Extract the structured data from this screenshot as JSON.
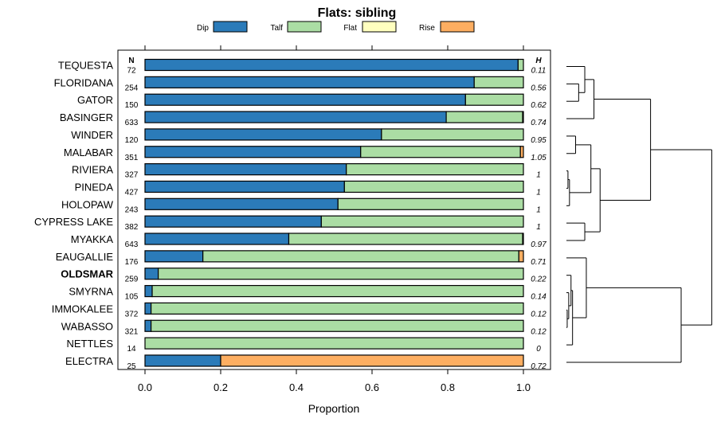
{
  "chart_data": {
    "type": "stacked-bar-horizontal",
    "title": "Flats: sibling",
    "xlabel": "Proportion",
    "xlim": [
      0,
      1
    ],
    "xticks": [
      "0.0",
      "0.2",
      "0.4",
      "0.6",
      "0.8",
      "1.0"
    ],
    "n_header": "N",
    "h_header": "H",
    "legend": [
      {
        "name": "Dip",
        "color": "#2b7bb9"
      },
      {
        "name": "Talf",
        "color": "#abdda4"
      },
      {
        "name": "Flat",
        "color": "#ffffbf"
      },
      {
        "name": "Rise",
        "color": "#fdae61"
      }
    ],
    "rows": [
      {
        "label": "TEQUESTA",
        "n": "72",
        "h": "0.11",
        "values": [
          0.986,
          0.014,
          0,
          0
        ]
      },
      {
        "label": "FLORIDANA",
        "n": "254",
        "h": "0.56",
        "values": [
          0.87,
          0.13,
          0,
          0
        ]
      },
      {
        "label": "GATOR",
        "n": "150",
        "h": "0.62",
        "values": [
          0.847,
          0.153,
          0,
          0
        ]
      },
      {
        "label": "BASINGER",
        "n": "633",
        "h": "0.74",
        "values": [
          0.796,
          0.202,
          0,
          0.002
        ]
      },
      {
        "label": "WINDER",
        "n": "120",
        "h": "0.95",
        "values": [
          0.625,
          0.375,
          0,
          0
        ]
      },
      {
        "label": "MALABAR",
        "n": "351",
        "h": "1.05",
        "values": [
          0.57,
          0.422,
          0,
          0.008
        ]
      },
      {
        "label": "RIVIERA",
        "n": "327",
        "h": "1",
        "values": [
          0.532,
          0.468,
          0,
          0
        ]
      },
      {
        "label": "PINEDA",
        "n": "427",
        "h": "1",
        "values": [
          0.527,
          0.473,
          0,
          0
        ]
      },
      {
        "label": "HOLOPAW",
        "n": "243",
        "h": "1",
        "values": [
          0.51,
          0.49,
          0,
          0
        ]
      },
      {
        "label": "CYPRESS LAKE",
        "n": "382",
        "h": "1",
        "values": [
          0.466,
          0.534,
          0,
          0
        ]
      },
      {
        "label": "MYAKKA",
        "n": "643",
        "h": "0.97",
        "values": [
          0.38,
          0.618,
          0,
          0.002
        ]
      },
      {
        "label": "EAUGALLIE",
        "n": "176",
        "h": "0.71",
        "values": [
          0.153,
          0.835,
          0,
          0.012
        ]
      },
      {
        "label": "OLDSMAR",
        "n": "259",
        "h": "0.22",
        "values": [
          0.035,
          0.965,
          0,
          0
        ],
        "bold": true
      },
      {
        "label": "SMYRNA",
        "n": "105",
        "h": "0.14",
        "values": [
          0.019,
          0.981,
          0,
          0
        ]
      },
      {
        "label": "IMMOKALEE",
        "n": "372",
        "h": "0.12",
        "values": [
          0.016,
          0.984,
          0,
          0
        ]
      },
      {
        "label": "WABASSO",
        "n": "321",
        "h": "0.12",
        "values": [
          0.016,
          0.984,
          0,
          0
        ]
      },
      {
        "label": "NETTLES",
        "n": "14",
        "h": "0",
        "values": [
          0,
          1,
          0,
          0
        ]
      },
      {
        "label": "ELECTRA",
        "n": "25",
        "h": "0.72",
        "values": [
          0.2,
          0,
          0,
          0.8
        ]
      }
    ],
    "dendrogram": {
      "note": "hierarchical clustering of rows (merge heights in arbitrary distance units)",
      "merges": [
        {
          "a": [
            1
          ],
          "b": [
            2
          ],
          "height": 0.08
        },
        {
          "a": [
            0
          ],
          "b": [
            1,
            2
          ],
          "height": 0.12
        },
        {
          "a": [
            0,
            1,
            2
          ],
          "b": [
            3
          ],
          "height": 0.18
        },
        {
          "a": [
            6
          ],
          "b": [
            7
          ],
          "height": 0.01
        },
        {
          "a": [
            6,
            7
          ],
          "b": [
            8
          ],
          "height": 0.02
        },
        {
          "a": [
            4
          ],
          "b": [
            5
          ],
          "height": 0.06
        },
        {
          "a": [
            4,
            5
          ],
          "b": [
            6,
            7,
            8
          ],
          "height": 0.16
        },
        {
          "a": [
            9
          ],
          "b": [
            10
          ],
          "height": 0.12
        },
        {
          "a": [
            4,
            5,
            6,
            7,
            8
          ],
          "b": [
            9,
            10
          ],
          "height": 0.22
        },
        {
          "a": [
            0,
            1,
            2,
            3
          ],
          "b": [
            4,
            5,
            6,
            7,
            8,
            9,
            10
          ],
          "height": 0.55
        },
        {
          "a": [
            14
          ],
          "b": [
            15
          ],
          "height": 0.005
        },
        {
          "a": [
            13
          ],
          "b": [
            14,
            15
          ],
          "height": 0.015
        },
        {
          "a": [
            12
          ],
          "b": [
            13,
            14,
            15
          ],
          "height": 0.03
        },
        {
          "a": [
            12,
            13,
            14,
            15
          ],
          "b": [
            16
          ],
          "height": 0.04
        },
        {
          "a": [
            11
          ],
          "b": [
            12,
            13,
            14,
            15,
            16
          ],
          "height": 0.13
        },
        {
          "a": [
            11,
            12,
            13,
            14,
            15,
            16
          ],
          "b": [
            17
          ],
          "height": 0.75
        },
        {
          "a": [
            0,
            1,
            2,
            3,
            4,
            5,
            6,
            7,
            8,
            9,
            10
          ],
          "b": [
            11,
            12,
            13,
            14,
            15,
            16,
            17
          ],
          "height": 0.95
        }
      ]
    }
  }
}
